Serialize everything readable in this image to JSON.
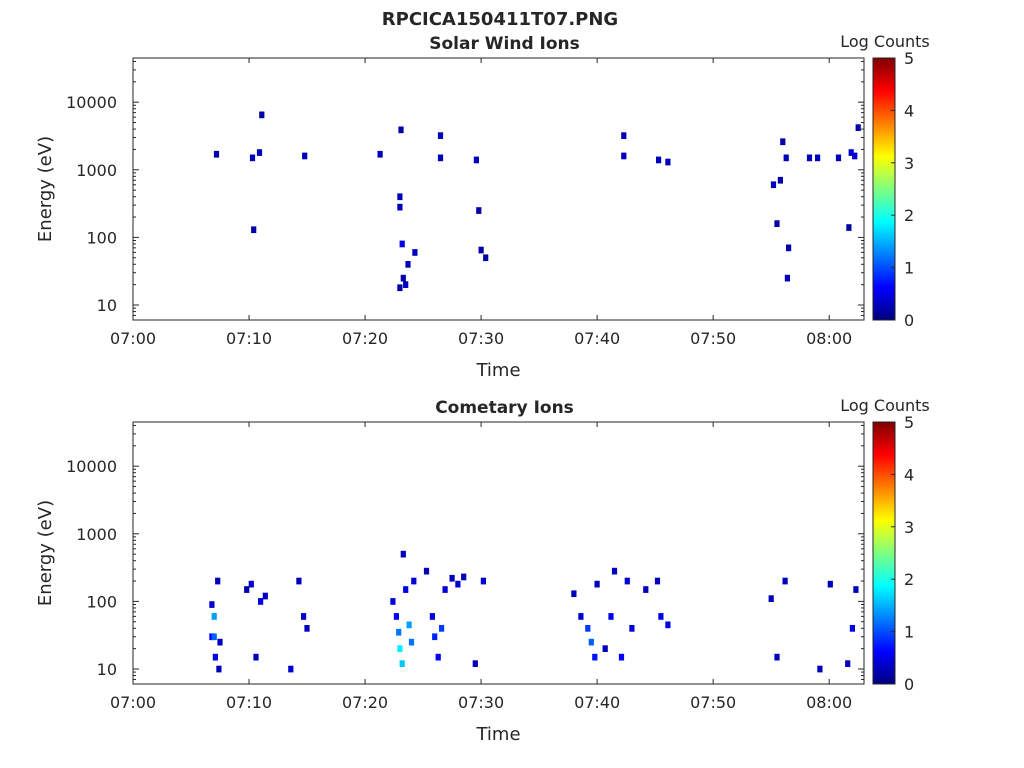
{
  "figure_title": "RPCICA150411T07.PNG",
  "colorbar_range": [
    0,
    5
  ],
  "colorbar_ticks": [
    "0",
    "1",
    "2",
    "3",
    "4",
    "5"
  ],
  "colormap": [
    "#00007f",
    "#0000ff",
    "#007fff",
    "#00ffff",
    "#7fff7f",
    "#ffff00",
    "#ff7f00",
    "#ff0000",
    "#7f0000"
  ],
  "chart_data": [
    {
      "type": "heatmap",
      "title": "Solar Wind Ions",
      "xlabel": "Time",
      "ylabel": "Energy (eV)",
      "colorbar_label": "Log Counts",
      "xlim": [
        "07:00",
        "08:03"
      ],
      "ylim": [
        6,
        45000
      ],
      "yscale": "log",
      "xticks": [
        "07:00",
        "07:10",
        "07:20",
        "07:30",
        "07:40",
        "07:50",
        "08:00"
      ],
      "yticks": [
        10,
        100,
        1000,
        10000
      ],
      "ytick_labels": [
        "10",
        "100",
        "1000",
        "10000"
      ],
      "cells": [
        [
          7.2,
          1700,
          0.2
        ],
        [
          10.3,
          1500,
          0.3
        ],
        [
          10.4,
          130,
          0.2
        ],
        [
          10.9,
          1800,
          0.3
        ],
        [
          11.1,
          6500,
          0.2
        ],
        [
          14.8,
          1600,
          0.3
        ],
        [
          21.3,
          1700,
          0.3
        ],
        [
          23.0,
          400,
          0.3
        ],
        [
          23.0,
          280,
          0.3
        ],
        [
          23.1,
          3900,
          0.2
        ],
        [
          23.2,
          80,
          0.5
        ],
        [
          23.3,
          25,
          0.2
        ],
        [
          23.0,
          18,
          0.2
        ],
        [
          23.5,
          20,
          0.3
        ],
        [
          23.7,
          40,
          0.3
        ],
        [
          24.3,
          60,
          0.3
        ],
        [
          26.5,
          3200,
          0.3
        ],
        [
          26.5,
          1500,
          0.3
        ],
        [
          29.6,
          1400,
          0.3
        ],
        [
          29.8,
          250,
          0.2
        ],
        [
          30.0,
          65,
          0.2
        ],
        [
          30.4,
          50,
          0.2
        ],
        [
          42.3,
          3200,
          0.3
        ],
        [
          42.3,
          1600,
          0.3
        ],
        [
          45.3,
          1400,
          0.3
        ],
        [
          46.1,
          1300,
          0.3
        ],
        [
          55.2,
          600,
          0.3
        ],
        [
          55.5,
          160,
          0.2
        ],
        [
          55.8,
          700,
          0.2
        ],
        [
          56.0,
          2600,
          0.2
        ],
        [
          56.3,
          1500,
          0.3
        ],
        [
          56.4,
          25,
          0.3
        ],
        [
          56.5,
          70,
          0.2
        ],
        [
          58.3,
          1500,
          0.3
        ],
        [
          59.0,
          1500,
          0.3
        ],
        [
          60.8,
          1500,
          0.3
        ],
        [
          61.7,
          140,
          0.2
        ],
        [
          61.9,
          1800,
          0.4
        ],
        [
          62.2,
          1600,
          0.4
        ],
        [
          62.5,
          4200,
          0.2
        ]
      ]
    },
    {
      "type": "heatmap",
      "title": "Cometary Ions",
      "xlabel": "Time",
      "ylabel": "Energy (eV)",
      "colorbar_label": "Log Counts",
      "xlim": [
        "07:00",
        "08:03"
      ],
      "ylim": [
        6,
        45000
      ],
      "yscale": "log",
      "xticks": [
        "07:00",
        "07:10",
        "07:20",
        "07:30",
        "07:40",
        "07:50",
        "08:00"
      ],
      "yticks": [
        10,
        100,
        1000,
        10000
      ],
      "ytick_labels": [
        "10",
        "100",
        "1000",
        "10000"
      ],
      "cells": [
        [
          6.8,
          90,
          0.4
        ],
        [
          6.8,
          30,
          0.6
        ],
        [
          7.0,
          60,
          1.4
        ],
        [
          7.0,
          30,
          1.1
        ],
        [
          7.1,
          15,
          0.5
        ],
        [
          7.3,
          200,
          0.3
        ],
        [
          7.4,
          10,
          0.3
        ],
        [
          7.5,
          25,
          0.3
        ],
        [
          9.8,
          150,
          0.2
        ],
        [
          10.2,
          180,
          0.4
        ],
        [
          10.6,
          15,
          0.3
        ],
        [
          11.0,
          100,
          0.5
        ],
        [
          11.4,
          120,
          0.3
        ],
        [
          13.6,
          10,
          0.4
        ],
        [
          14.3,
          200,
          0.3
        ],
        [
          14.7,
          60,
          0.4
        ],
        [
          15.0,
          40,
          0.3
        ],
        [
          22.4,
          100,
          0.4
        ],
        [
          22.7,
          60,
          0.6
        ],
        [
          22.9,
          35,
          1.2
        ],
        [
          23.0,
          20,
          1.8
        ],
        [
          23.2,
          12,
          1.6
        ],
        [
          23.3,
          500,
          0.3
        ],
        [
          23.5,
          150,
          0.5
        ],
        [
          23.8,
          45,
          1.4
        ],
        [
          24.0,
          25,
          1.2
        ],
        [
          24.2,
          200,
          0.4
        ],
        [
          25.3,
          280,
          0.3
        ],
        [
          25.8,
          60,
          0.5
        ],
        [
          26.0,
          30,
          0.8
        ],
        [
          26.3,
          15,
          0.6
        ],
        [
          26.6,
          40,
          0.9
        ],
        [
          26.9,
          150,
          0.4
        ],
        [
          27.5,
          220,
          0.3
        ],
        [
          28.0,
          180,
          0.4
        ],
        [
          28.5,
          230,
          0.3
        ],
        [
          29.5,
          12,
          0.3
        ],
        [
          30.2,
          200,
          0.4
        ],
        [
          38.0,
          130,
          0.3
        ],
        [
          38.6,
          60,
          0.4
        ],
        [
          39.2,
          40,
          0.9
        ],
        [
          39.5,
          25,
          1.1
        ],
        [
          39.8,
          15,
          0.7
        ],
        [
          40.0,
          180,
          0.3
        ],
        [
          40.7,
          20,
          0.3
        ],
        [
          41.2,
          60,
          0.5
        ],
        [
          41.5,
          280,
          0.3
        ],
        [
          42.1,
          15,
          0.6
        ],
        [
          42.6,
          200,
          0.4
        ],
        [
          43.0,
          40,
          0.4
        ],
        [
          44.2,
          150,
          0.3
        ],
        [
          45.2,
          200,
          0.3
        ],
        [
          45.5,
          60,
          0.5
        ],
        [
          46.1,
          45,
          0.5
        ],
        [
          55.0,
          110,
          0.3
        ],
        [
          55.5,
          15,
          0.3
        ],
        [
          56.2,
          200,
          0.3
        ],
        [
          59.2,
          10,
          0.3
        ],
        [
          60.1,
          180,
          0.3
        ],
        [
          61.6,
          12,
          0.3
        ],
        [
          62.0,
          40,
          0.5
        ],
        [
          62.3,
          150,
          0.3
        ]
      ]
    }
  ]
}
